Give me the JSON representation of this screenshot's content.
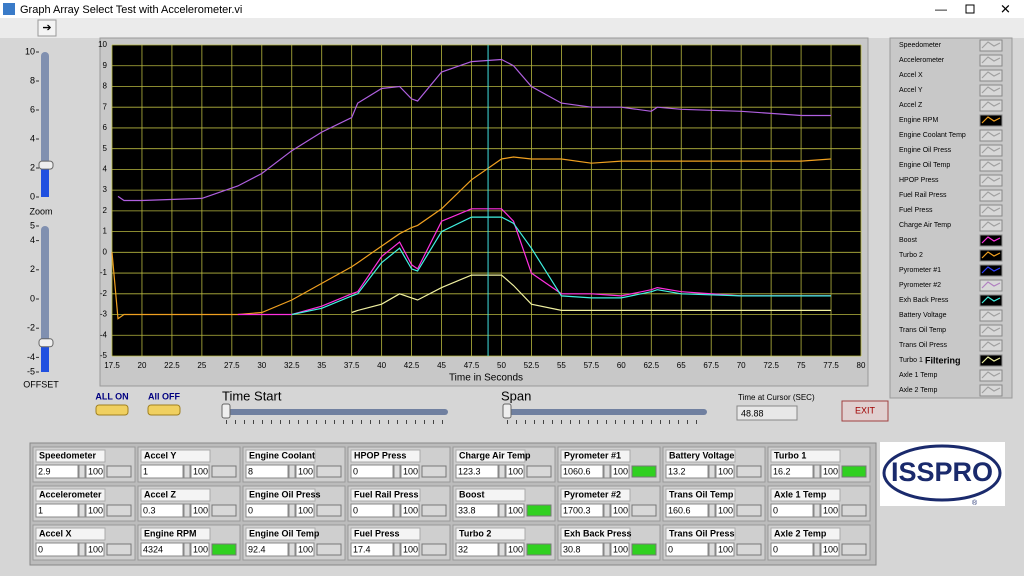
{
  "window": {
    "title": "Graph Array Select Test with Accelerometer.vi"
  },
  "chart_data": {
    "type": "line",
    "xlabel": "Time in Seconds",
    "x": [
      17.5,
      18,
      18.5,
      20,
      25,
      28,
      30,
      32.5,
      35,
      37.5,
      38,
      40,
      41.5,
      42.5,
      43,
      45,
      47.5,
      50,
      51,
      52.5,
      55,
      57.5,
      60,
      62.5,
      63,
      65,
      70,
      75,
      77.5
    ],
    "xlim": [
      17.5,
      80
    ],
    "xticks": [
      17.5,
      20,
      22.5,
      25,
      27.5,
      30,
      32.5,
      35,
      37.5,
      40,
      42.5,
      45,
      47.5,
      50,
      52.5,
      55,
      57.5,
      60,
      62.5,
      65,
      67.5,
      70,
      72.5,
      75,
      77.5,
      80
    ],
    "ylim": [
      -5,
      10
    ],
    "yticks": [
      -5,
      -4,
      -3,
      -2,
      -1,
      0,
      1,
      2,
      3,
      4,
      5,
      6,
      7,
      8,
      9,
      10
    ],
    "grid": true,
    "series": [
      {
        "name": "Pyrometer #2",
        "color": "#b060e0",
        "values": [
          null,
          2.7,
          2.5,
          2.5,
          2.6,
          3.2,
          3.8,
          4.9,
          5.8,
          6.5,
          7.2,
          7.9,
          8.0,
          7.4,
          7.3,
          8.7,
          9.2,
          9.3,
          9.0,
          8.0,
          7.2,
          7.0,
          7.0,
          6.8,
          7.0,
          6.9,
          6.8,
          6.6,
          6.6
        ]
      },
      {
        "name": "Engine RPM",
        "color": "#f0a020",
        "values": [
          0,
          -3.2,
          -3.0,
          -3.0,
          -3.0,
          -3.0,
          -2.9,
          -2.3,
          -1.5,
          -0.7,
          -0.5,
          0.3,
          0.9,
          1.2,
          1.3,
          2.1,
          3.5,
          4.5,
          4.6,
          4.5,
          4.5,
          4.3,
          4.4,
          4.4,
          4.4,
          4.4,
          4.4,
          4.4,
          4.5
        ]
      },
      {
        "name": "Boost",
        "color": "#ff30e0",
        "values": [
          null,
          null,
          null,
          null,
          null,
          -3.0,
          -3.0,
          -3.0,
          -2.6,
          -2.0,
          -1.9,
          -0.2,
          0.5,
          -0.6,
          -0.8,
          1.5,
          2.1,
          2.1,
          1.5,
          -1.0,
          -2.0,
          -2.0,
          -2.1,
          -1.8,
          -1.7,
          -1.9,
          -2.1,
          -2.1,
          -2.1
        ]
      },
      {
        "name": "Exh Back Press",
        "color": "#40f0e0",
        "values": [
          null,
          null,
          null,
          null,
          null,
          null,
          null,
          -3.0,
          -2.7,
          -2.1,
          -2.0,
          -0.5,
          0.2,
          -0.8,
          -0.9,
          1.0,
          1.7,
          1.7,
          1.4,
          0.2,
          -2.1,
          -2.2,
          -2.2,
          -1.9,
          -1.8,
          -2.0,
          -2.1,
          -2.1,
          -2.1
        ]
      },
      {
        "name": "Turbo 1",
        "color": "#f0f0a0",
        "values": [
          null,
          null,
          null,
          null,
          null,
          null,
          null,
          null,
          null,
          -2.9,
          -2.8,
          -2.5,
          -2.0,
          -2.2,
          -2.3,
          -1.7,
          -1.1,
          -1.1,
          -1.6,
          -2.5,
          -2.8,
          -2.8,
          -2.8,
          -2.8,
          -2.8,
          -2.8,
          -2.8,
          -2.8,
          -2.8
        ]
      }
    ]
  },
  "cursor": {
    "label": "Time at Cursor (SEC)",
    "time": 48.88
  },
  "zoom": {
    "label": "Zoom",
    "lim": [
      0,
      10
    ],
    "ticks": [
      0,
      2,
      4,
      6,
      8,
      10
    ],
    "value": 2.2
  },
  "offset": {
    "label": "OFFSET",
    "lim": [
      -5,
      5
    ],
    "ticks": [
      -5,
      -4,
      -2,
      0,
      2,
      4,
      5
    ],
    "value": -3.0
  },
  "buttons": {
    "all_on": "ALL ON",
    "all_off": "All OFF",
    "exit": "EXIT"
  },
  "sliders": {
    "time_start": "Time Start",
    "span": "Span"
  },
  "legend_panel": {
    "filtering": "Filtering",
    "items": [
      {
        "label": "Speedometer",
        "color": "#a0a0a0",
        "active": false
      },
      {
        "label": "Accelerometer",
        "color": "#a0a0a0",
        "active": false
      },
      {
        "label": "Accel X",
        "color": "#a0a0a0",
        "active": false
      },
      {
        "label": "Accel Y",
        "color": "#a0a0a0",
        "active": false
      },
      {
        "label": "Accel Z",
        "color": "#a0a0a0",
        "active": false
      },
      {
        "label": "Engine RPM",
        "color": "#f0a020",
        "active": true
      },
      {
        "label": "Engine Coolant Temp",
        "color": "#a0a0a0",
        "active": false
      },
      {
        "label": "Engine Oil Press",
        "color": "#a0a0a0",
        "active": false
      },
      {
        "label": "Engine Oil Temp",
        "color": "#a0a0a0",
        "active": false
      },
      {
        "label": "HPOP Press",
        "color": "#a0a0a0",
        "active": false
      },
      {
        "label": "Fuel Rail Press",
        "color": "#a0a0a0",
        "active": false
      },
      {
        "label": "Fuel Press",
        "color": "#a0a0a0",
        "active": false
      },
      {
        "label": "Charge Air Temp",
        "color": "#a0a0a0",
        "active": false
      },
      {
        "label": "Boost",
        "color": "#ff30e0",
        "active": true
      },
      {
        "label": "Turbo 2",
        "color": "#f0a020",
        "active": true
      },
      {
        "label": "Pyrometer #1",
        "color": "#3040ff",
        "active": true
      },
      {
        "label": "Pyrometer #2",
        "color": "#b080c0",
        "active": false
      },
      {
        "label": "Exh Back Press",
        "color": "#40f0e0",
        "active": true
      },
      {
        "label": "Battery Voltage",
        "color": "#a0a0a0",
        "active": false
      },
      {
        "label": "Trans Oil Temp",
        "color": "#a0a0a0",
        "active": false
      },
      {
        "label": "Trans Oil Press",
        "color": "#a0a0a0",
        "active": false
      },
      {
        "label": "Turbo 1",
        "color": "#f0f0a0",
        "active": true
      },
      {
        "label": "Axle 1 Temp",
        "color": "#a0a0a0",
        "active": false
      },
      {
        "label": "Axle 2 Temp",
        "color": "#a0a0a0",
        "active": false
      }
    ]
  },
  "gauges": {
    "rows": [
      [
        {
          "name": "Speedometer",
          "value": 2.9,
          "limit": 100,
          "alarm": false
        },
        {
          "name": "Accel Y",
          "value": 1,
          "limit": 100,
          "alarm": false
        },
        {
          "name": "Engine Coolant",
          "value": 8,
          "limit": 100,
          "alarm": false
        },
        {
          "name": "HPOP Press",
          "value": 0,
          "limit": 100,
          "alarm": false
        },
        {
          "name": "Charge Air Temp",
          "value": 123.3,
          "limit": 100,
          "alarm": false
        },
        {
          "name": "Pyrometer #1",
          "value": 1060.6,
          "limit": 100,
          "alarm": true
        },
        {
          "name": "Battery Voltage",
          "value": 13.2,
          "limit": 100,
          "alarm": false
        },
        {
          "name": "Turbo 1",
          "value": 16.2,
          "limit": 100,
          "alarm": true
        }
      ],
      [
        {
          "name": "Accelerometer",
          "value": 1,
          "limit": 100,
          "alarm": false
        },
        {
          "name": "Accel Z",
          "value": 0.3,
          "limit": 100,
          "alarm": false
        },
        {
          "name": "Engine Oil Press",
          "value": 0,
          "limit": 100,
          "alarm": false
        },
        {
          "name": "Fuel Rail Press",
          "value": 0,
          "limit": 100,
          "alarm": false
        },
        {
          "name": "Boost",
          "value": 33.8,
          "limit": 100,
          "alarm": true
        },
        {
          "name": "Pyrometer #2",
          "value": 1700.3,
          "limit": 100,
          "alarm": false
        },
        {
          "name": "Trans Oil Temp",
          "value": 160.6,
          "limit": 100,
          "alarm": false
        },
        {
          "name": "Axle 1 Temp",
          "value": 0,
          "limit": 100,
          "alarm": false
        }
      ],
      [
        {
          "name": "Accel X",
          "value": 0,
          "limit": 100,
          "alarm": false
        },
        {
          "name": "Engine RPM",
          "value": 4324,
          "limit": 100,
          "alarm": true
        },
        {
          "name": "Engine Oil Temp",
          "value": 92.4,
          "limit": 100,
          "alarm": false
        },
        {
          "name": "Fuel Press",
          "value": 17.4,
          "limit": 100,
          "alarm": false
        },
        {
          "name": "Turbo 2",
          "value": 32,
          "limit": 100,
          "alarm": true
        },
        {
          "name": "Exh Back Press",
          "value": 30.8,
          "limit": 100,
          "alarm": true
        },
        {
          "name": "Trans Oil Press",
          "value": 0,
          "limit": 100,
          "alarm": false
        },
        {
          "name": "Axle 2 Temp",
          "value": 0,
          "limit": 100,
          "alarm": false
        }
      ]
    ]
  },
  "logo": {
    "text": "ISSPRO",
    "mark": "®"
  }
}
